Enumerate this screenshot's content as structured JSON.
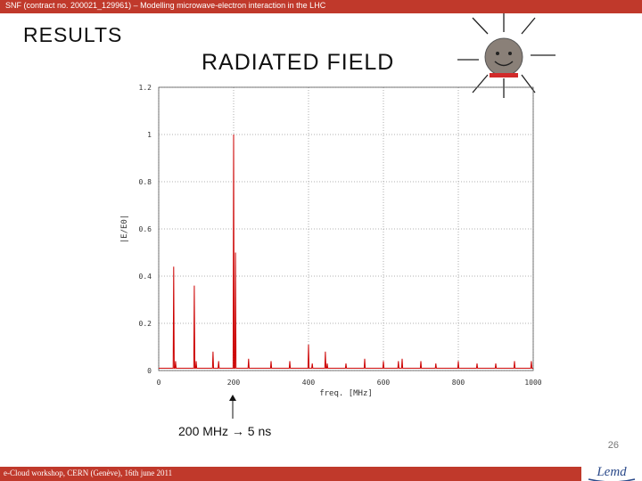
{
  "header": {
    "text": "SNF (contract no. 200021_129961) – Modelling microwave-electron interaction in the LHC"
  },
  "slide": {
    "results_label": "RESULTS",
    "title": "RADIATED FIELD",
    "annotation": "200 MHz → 5 ns",
    "page_number": "26"
  },
  "footer": {
    "text": "e-Cloud workshop, CERN (Genève), 16th june 2011",
    "logo_text": "Lemd"
  },
  "colors": {
    "bar": "#c0392b",
    "series": "#cc0000"
  },
  "icons": {
    "sun": "smiley-sun-icon"
  },
  "chart_data": {
    "type": "line",
    "xlabel": "freq. [MHz]",
    "ylabel": "|E/E0|",
    "xlim": [
      0,
      1000
    ],
    "ylim": [
      0,
      1.2
    ],
    "xticks": [
      "0",
      "200",
      "400",
      "600",
      "800",
      "1000"
    ],
    "yticks": [
      "0",
      "0.2",
      "0.4",
      "0.6",
      "0.8",
      "1",
      "1.2"
    ],
    "grid": true,
    "series": [
      {
        "x": [
          40,
          45,
          95,
          100,
          145,
          160,
          200,
          205,
          240,
          300,
          350,
          400,
          410,
          445,
          450,
          500,
          550,
          600,
          640,
          650,
          700,
          740,
          800,
          850,
          900,
          950,
          995
        ],
        "y": [
          0.44,
          0.04,
          0.36,
          0.04,
          0.08,
          0.04,
          1.0,
          0.5,
          0.05,
          0.04,
          0.04,
          0.11,
          0.03,
          0.08,
          0.03,
          0.03,
          0.05,
          0.04,
          0.04,
          0.05,
          0.04,
          0.03,
          0.04,
          0.03,
          0.03,
          0.04,
          0.04
        ]
      }
    ]
  }
}
